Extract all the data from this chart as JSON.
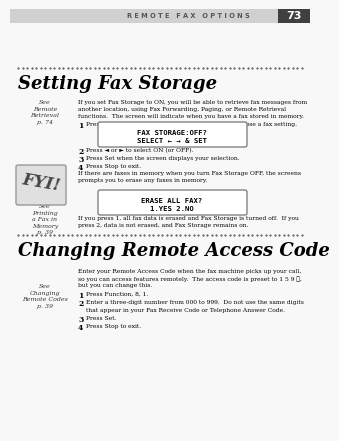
{
  "page_bg": "#f8f8f8",
  "header_bg": "#d0d0d0",
  "header_text": "R E M O T E   F A X   O P T I O N S",
  "header_page": "73",
  "section1_title": "Setting Fax Storage",
  "section2_title": "Changing Remote Access Code",
  "sidebar1_text": "See\nRemote\nRetrieval\np. 74",
  "sidebar2_text": "See\nPrinting\na Fax in\nMemory\np. 39",
  "sidebar3_text": "See\nChanging\nRemote Codes\np. 39",
  "body1_lines": [
    "If you set Fax Storage to ON, you will be able to retrieve fax messages from",
    "another location, using Fax Forwarding, Paging, or Remote Retrieval",
    "functions.  The screen will indicate when you have a fax stored in memory."
  ],
  "step1_1": "Press Function, 8, 2.  The screen prompts you to choose a fax setting.",
  "lcd1_line1": "FAX STORAGE:OFF?",
  "lcd1_line2": "SELECT ← → & SET",
  "step1_2": "Press ◄ or ► to select ON (or OFF).",
  "step1_3": "Press Set when the screen displays your selection.",
  "step1_4": "Press Stop to exit.",
  "fyi_lines": [
    "If there are faxes in memory when you turn Fax Storage OFF, the screens",
    "prompts you to erase any faxes in memory."
  ],
  "lcd2_line1": "ERASE ALL FAX?",
  "lcd2_line2": "1.YES 2.NO",
  "fyi_bottom_lines": [
    "If you press 1, all fax data is erased and Fax Storage is turned off.  If you",
    "press 2, data is not erased, and Fax Storage remains on."
  ],
  "body2_lines": [
    "Enter your Remote Access Code when the fax machine picks up your call,",
    "so you can access features remotely.  The access code is preset to 1 5 9 ★,",
    "but you can change this."
  ],
  "step2_1": "Press Function, 8, 1.",
  "step2_2a": "Enter a three-digit number from 000 to 999.  Do not use the same digits",
  "step2_2b": "that appear in your Fax Receive Code or Telephone Answer Code.",
  "step2_3": "Press Set.",
  "step2_4": "Press Stop to exit."
}
